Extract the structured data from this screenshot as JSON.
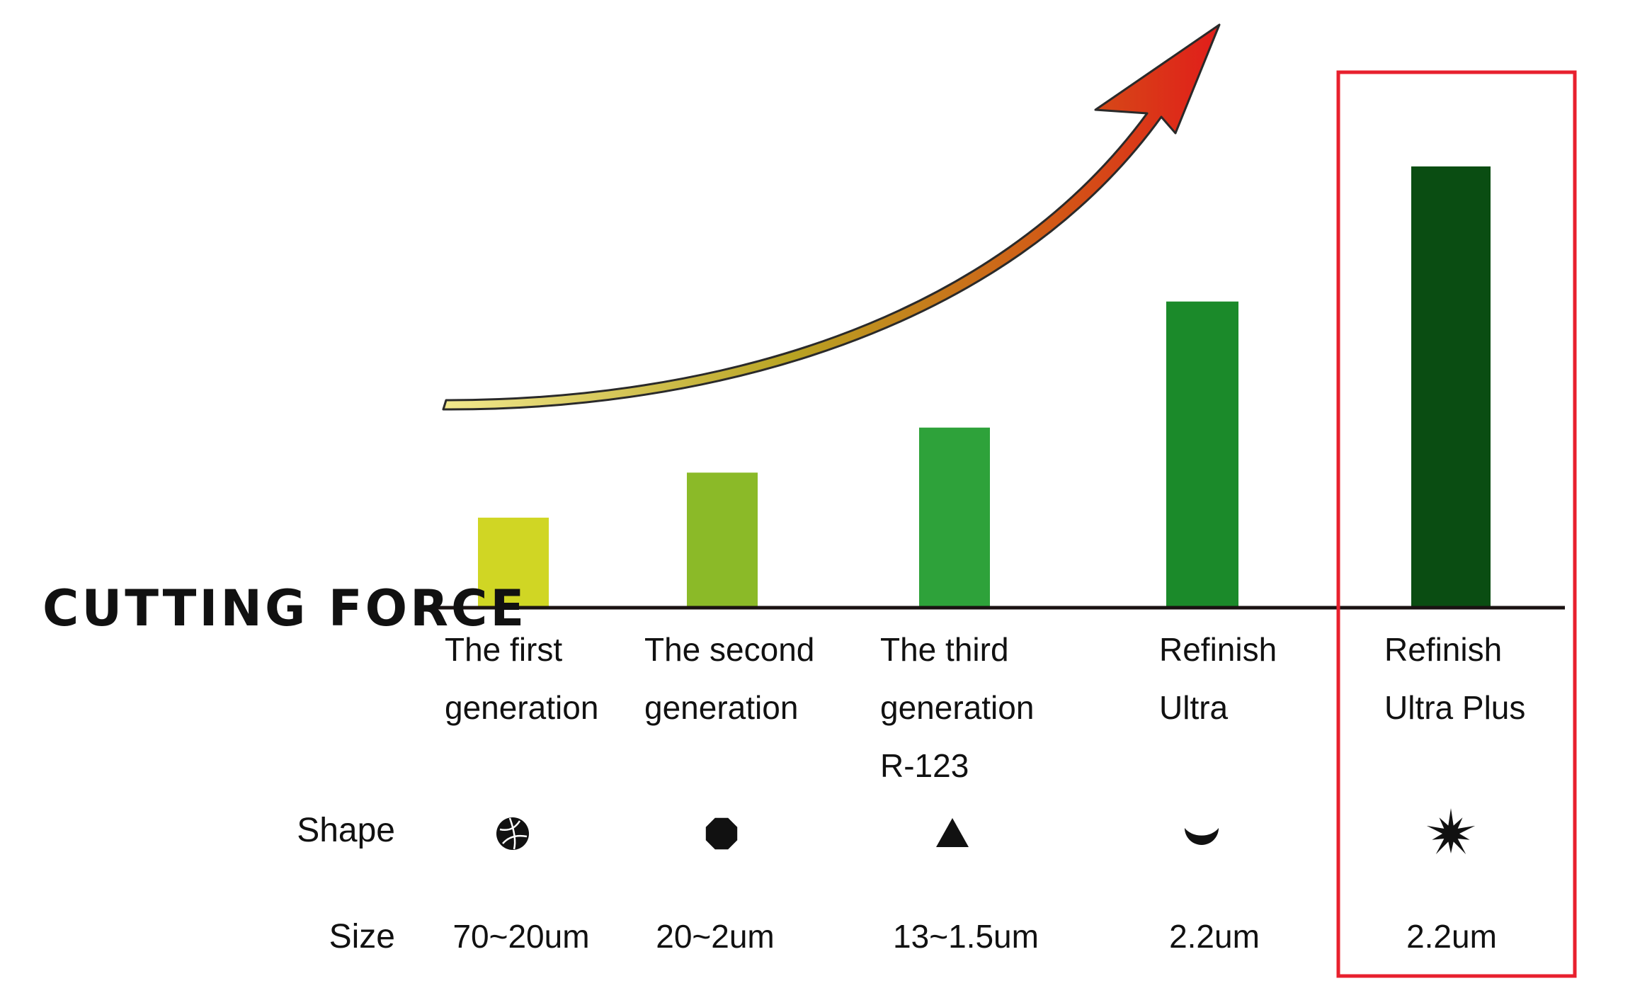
{
  "chart_data": {
    "type": "bar",
    "title": "",
    "ylabel": "CUTTING FORCE",
    "categories": [
      [
        "The first",
        "generation"
      ],
      [
        "The second",
        "generation"
      ],
      [
        "The third",
        "generation",
        "R-123"
      ],
      [
        "Refinish",
        "Ultra"
      ],
      [
        "Refinish",
        "Ultra Plus"
      ]
    ],
    "values": [
      1.0,
      1.5,
      2.0,
      3.4,
      4.9
    ],
    "ylim": [
      0,
      5.4
    ],
    "bar_colors": [
      "#d0d624",
      "#8bba28",
      "#2ea23a",
      "#1b8a2a",
      "#0a4d12"
    ],
    "highlight_index": 4,
    "highlight_color": "#e8202e",
    "trend_arrow": {
      "direction": "up-right",
      "gradient": [
        "#f0e68c",
        "#b8a020",
        "#d44a14",
        "#e01f1a"
      ]
    },
    "grid": false
  },
  "rows": {
    "shape_label": "Shape",
    "size_label": "Size",
    "shapes": [
      "rounded-ball-icon",
      "octagon-icon",
      "triangle-icon",
      "crescent-icon",
      "starburst-icon"
    ],
    "sizes": [
      "70~20um",
      "20~2um",
      "13~1.5um",
      "2.2um",
      "2.2um"
    ]
  }
}
